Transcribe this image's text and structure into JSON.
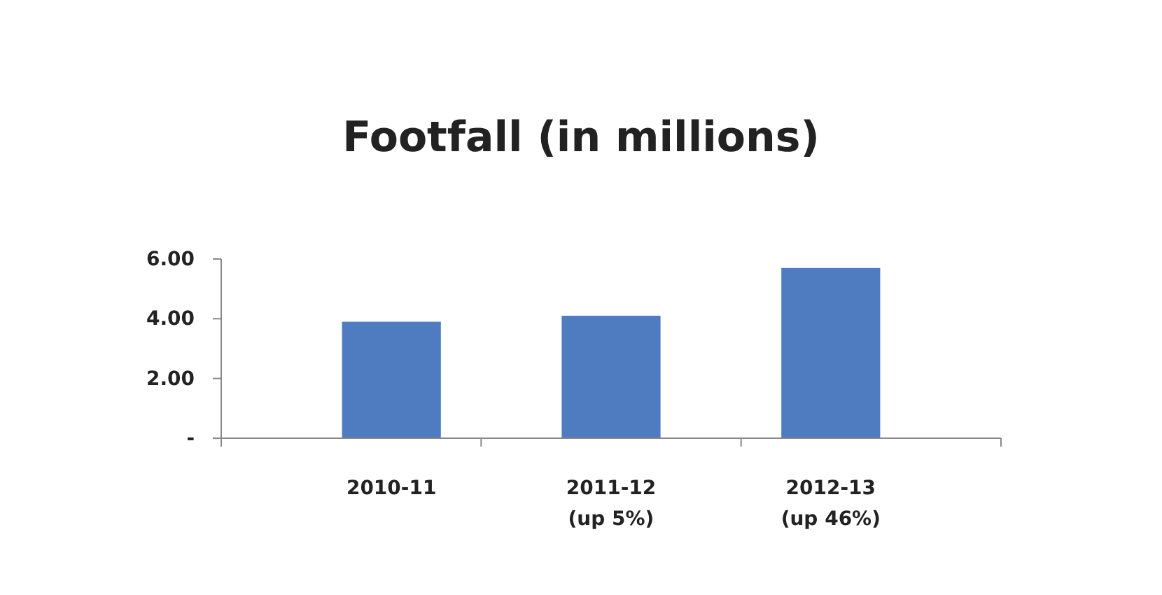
{
  "chart_data": {
    "type": "bar",
    "title": "Footfall (in millions)",
    "categories": [
      "2010-11",
      "2011-12\n(up 5%)",
      "2012-13\n(up 46%)"
    ],
    "values": [
      3.9,
      4.1,
      5.7
    ],
    "color": "#4f7cc0",
    "ylim": [
      0,
      6
    ],
    "yticks": [
      {
        "value": 0,
        "label": "-"
      },
      {
        "value": 2,
        "label": "2.00"
      },
      {
        "value": 4,
        "label": "4.00"
      },
      {
        "value": 6,
        "label": "6.00"
      }
    ],
    "grid": false
  }
}
